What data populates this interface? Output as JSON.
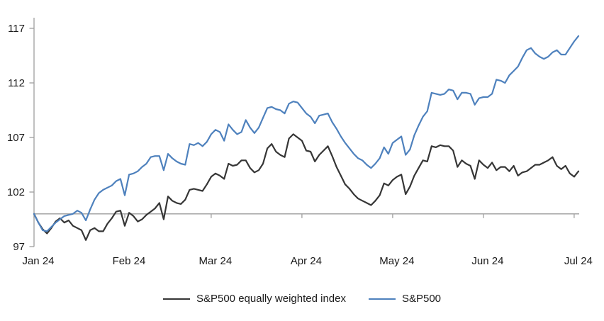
{
  "chart_data": {
    "type": "line",
    "title": "",
    "xlabel": "",
    "ylabel": "",
    "grid": "off",
    "legend_position": "bottom-center",
    "baseline_value": 100,
    "y_ticks": [
      97,
      102,
      107,
      112,
      117
    ],
    "ylim": [
      97,
      118
    ],
    "x_range": [
      0,
      126
    ],
    "x_tick_labels": [
      "Jan 24",
      "Feb 24",
      "Mar 24",
      "Apr 24",
      "May 24",
      "Jun 24",
      "Jul 24"
    ],
    "x_tick_positions": [
      0,
      21,
      41,
      62,
      83,
      104,
      125
    ],
    "axis_color": "#9e9e9e",
    "text_color": "#1a1a1a",
    "series": [
      {
        "name": "S&P500 equally weighted index",
        "color": "#363636",
        "values": [
          100.0,
          99.2,
          98.6,
          98.2,
          98.7,
          99.3,
          99.6,
          99.2,
          99.4,
          98.9,
          98.7,
          98.5,
          97.6,
          98.5,
          98.7,
          98.4,
          98.4,
          99.1,
          99.6,
          100.2,
          100.3,
          98.9,
          100.1,
          99.8,
          99.3,
          99.5,
          99.9,
          100.2,
          100.5,
          101.0,
          99.5,
          101.6,
          101.2,
          101.0,
          100.9,
          101.3,
          102.2,
          102.3,
          102.2,
          102.1,
          102.7,
          103.4,
          103.7,
          103.5,
          103.2,
          104.6,
          104.4,
          104.5,
          104.9,
          104.9,
          104.2,
          103.8,
          104.0,
          104.6,
          106.0,
          106.4,
          105.7,
          105.4,
          105.2,
          106.9,
          107.3,
          107.0,
          106.7,
          105.8,
          105.7,
          104.8,
          105.4,
          105.8,
          106.2,
          105.3,
          104.3,
          103.5,
          102.7,
          102.3,
          101.8,
          101.4,
          101.2,
          101.0,
          100.8,
          101.2,
          101.7,
          102.8,
          102.6,
          103.1,
          103.4,
          103.6,
          101.8,
          102.5,
          103.5,
          104.2,
          104.9,
          104.8,
          106.2,
          106.1,
          106.3,
          106.2,
          106.2,
          105.8,
          104.3,
          104.9,
          104.6,
          104.4,
          103.2,
          104.9,
          104.5,
          104.2,
          104.7,
          104.0,
          104.3,
          104.3,
          103.9,
          104.4,
          103.5,
          103.8,
          103.9,
          104.2,
          104.5,
          104.5,
          104.7,
          104.9,
          105.2,
          104.4,
          104.1,
          104.4,
          103.7,
          103.4,
          103.9
        ]
      },
      {
        "name": "S&P500",
        "color": "#4e81bd",
        "values": [
          100.0,
          99.2,
          98.5,
          98.4,
          98.8,
          99.2,
          99.5,
          99.8,
          99.9,
          100.0,
          100.3,
          100.1,
          99.4,
          100.4,
          101.3,
          101.9,
          102.2,
          102.4,
          102.6,
          103.0,
          103.2,
          101.7,
          103.6,
          103.7,
          103.9,
          104.3,
          104.6,
          105.2,
          105.3,
          105.3,
          104.0,
          105.5,
          105.1,
          104.8,
          104.6,
          104.5,
          106.4,
          106.3,
          106.5,
          106.2,
          106.6,
          107.3,
          107.7,
          107.5,
          106.7,
          108.2,
          107.7,
          107.3,
          107.5,
          108.6,
          107.9,
          107.4,
          107.9,
          108.8,
          109.7,
          109.8,
          109.6,
          109.5,
          109.2,
          110.1,
          110.3,
          110.2,
          109.7,
          109.2,
          108.9,
          108.3,
          109.0,
          109.1,
          109.2,
          108.4,
          107.8,
          107.1,
          106.5,
          106.0,
          105.5,
          105.1,
          104.9,
          104.5,
          104.2,
          104.6,
          105.1,
          106.1,
          105.5,
          106.5,
          106.8,
          107.1,
          105.4,
          105.9,
          107.2,
          108.1,
          108.9,
          109.4,
          111.1,
          111.0,
          110.9,
          111.0,
          111.4,
          111.3,
          110.5,
          111.1,
          111.1,
          111.0,
          110.0,
          110.6,
          110.7,
          110.7,
          111.0,
          112.3,
          112.2,
          112.0,
          112.7,
          113.1,
          113.5,
          114.3,
          115.0,
          115.2,
          114.7,
          114.4,
          114.2,
          114.4,
          114.8,
          115.0,
          114.6,
          114.6,
          115.2,
          115.8,
          116.3
        ]
      }
    ]
  }
}
